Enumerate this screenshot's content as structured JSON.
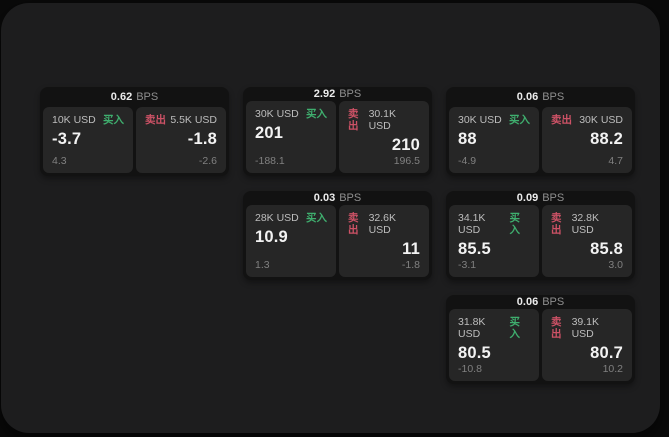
{
  "colors": {
    "outer_bg": "#0a0a0a",
    "panel_bg": "#1d1d1e",
    "card_bg": "#121212",
    "tile_bg": "#262626",
    "buy_accent": "#3fae6e",
    "sell_accent": "#cd5266"
  },
  "labels": {
    "bps_unit": "BPS",
    "buy": "买入",
    "sell": "卖出"
  },
  "cards": [
    {
      "bps": "0.62",
      "buy": {
        "size": "10K USD",
        "price": "-3.7",
        "delta": "4.3"
      },
      "sell": {
        "size": "5.5K USD",
        "price": "-1.8",
        "delta": "-2.6"
      }
    },
    {
      "bps": "2.92",
      "buy": {
        "size": "30K USD",
        "price": "201",
        "delta": "-188.1"
      },
      "sell": {
        "size": "30.1K USD",
        "price": "210",
        "delta": "196.5"
      }
    },
    {
      "bps": "0.06",
      "buy": {
        "size": "30K USD",
        "price": "88",
        "delta": "-4.9"
      },
      "sell": {
        "size": "30K USD",
        "price": "88.2",
        "delta": "4.7"
      }
    },
    {
      "bps": "0.03",
      "buy": {
        "size": "28K USD",
        "price": "10.9",
        "delta": "1.3"
      },
      "sell": {
        "size": "32.6K USD",
        "price": "11",
        "delta": "-1.8"
      }
    },
    {
      "bps": "0.09",
      "buy": {
        "size": "34.1K USD",
        "price": "85.5",
        "delta": "-3.1"
      },
      "sell": {
        "size": "32.8K USD",
        "price": "85.8",
        "delta": "3.0"
      }
    },
    {
      "bps": "0.06",
      "buy": {
        "size": "31.8K USD",
        "price": "80.5",
        "delta": "-10.8"
      },
      "sell": {
        "size": "39.1K USD",
        "price": "80.7",
        "delta": "10.2"
      }
    }
  ]
}
